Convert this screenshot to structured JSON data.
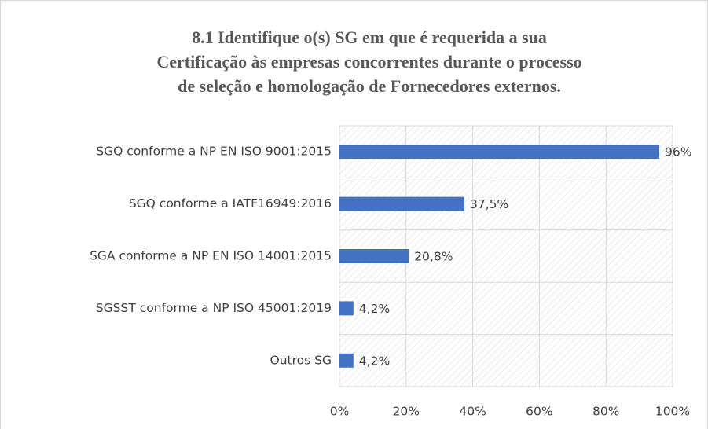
{
  "chart_data": {
    "type": "bar",
    "orientation": "horizontal",
    "title": [
      "8.1    Identifique o(s) SG em que é requerida a sua",
      "Certificação às empresas concorrentes durante o processo",
      "de seleção e homologação de Fornecedores externos."
    ],
    "categories": [
      "SGQ conforme a NP EN ISO 9001:2015",
      "SGQ conforme a IATF16949:2016",
      "SGA conforme a NP EN ISO 14001:2015",
      "SGSST conforme a NP ISO 45001:2019",
      "Outros SG"
    ],
    "values": [
      96,
      37.5,
      20.8,
      4.2,
      4.2
    ],
    "value_labels": [
      "96%",
      "37,5%",
      "20,8%",
      "4,2%",
      "4,2%"
    ],
    "color": "#4472c4",
    "xlim": [
      0,
      100
    ],
    "xticks": [
      {
        "value": 0,
        "label": "0%"
      },
      {
        "value": 20,
        "label": "20%"
      },
      {
        "value": 40,
        "label": "40%"
      },
      {
        "value": 60,
        "label": "60%"
      },
      {
        "value": 80,
        "label": "80%"
      },
      {
        "value": 100,
        "label": "100%"
      }
    ],
    "grid": true
  }
}
